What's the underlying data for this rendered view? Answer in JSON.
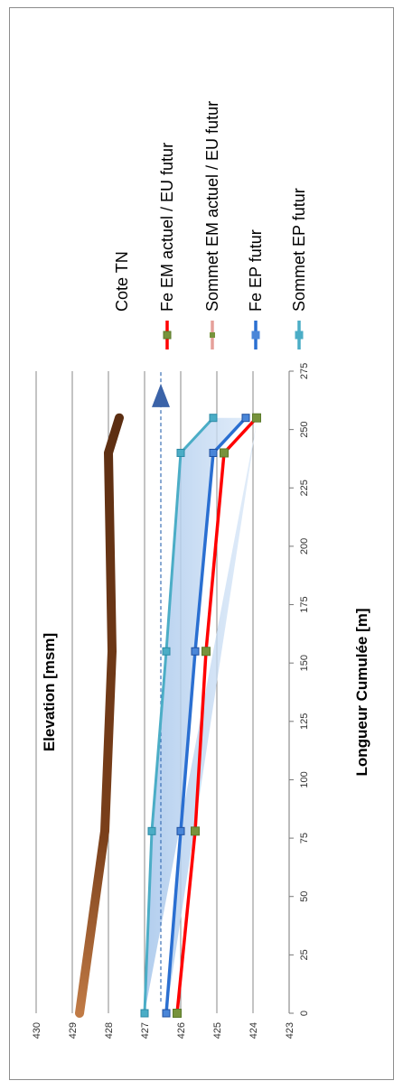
{
  "chart_data": {
    "type": "line",
    "xlabel": "Longueur Cumulée [m]",
    "ylabel": "Elevation [msm]",
    "xlim": [
      0,
      275
    ],
    "ylim": [
      423,
      430
    ],
    "x_ticks": [
      "0",
      "25",
      "50",
      "75",
      "100",
      "125",
      "150",
      "175",
      "200",
      "225",
      "250",
      "275"
    ],
    "y_ticks": [
      "423",
      "424",
      "425",
      "426",
      "427",
      "428",
      "429",
      "430"
    ],
    "grid": "horizontal",
    "legend_position": "right",
    "water_level": 426.55,
    "series": [
      {
        "name": "Cote TN",
        "color": "#6b3a1c",
        "marker": "none",
        "x": [
          0,
          78,
          155,
          240,
          255
        ],
        "y": [
          428.8,
          428.1,
          427.9,
          428.0,
          427.7
        ]
      },
      {
        "name": "Fe EM actuel / EU futur",
        "color": "#ff0000",
        "marker": "square-green",
        "x": [
          0,
          78,
          155,
          240,
          255
        ],
        "y": [
          426.1,
          425.6,
          425.3,
          424.8,
          423.9
        ]
      },
      {
        "name": "Sommet EM actuel / EU futur",
        "color": "#e6a09a",
        "marker": "square-green-small",
        "x": [
          0,
          78,
          155,
          240,
          255
        ],
        "y": [
          426.1,
          425.6,
          425.3,
          424.8,
          423.9
        ]
      },
      {
        "name": "Fe EP futur",
        "color": "#2a6fd1",
        "marker": "square-blue",
        "x": [
          0,
          78,
          155,
          240,
          255
        ],
        "y": [
          426.4,
          426.0,
          425.6,
          425.1,
          424.2
        ]
      },
      {
        "name": "Sommet EP futur",
        "color": "#4badc6",
        "marker": "square-cyan",
        "x": [
          0,
          78,
          155,
          240,
          255
        ],
        "y": [
          427.0,
          426.8,
          426.4,
          426.0,
          425.1
        ]
      }
    ]
  }
}
